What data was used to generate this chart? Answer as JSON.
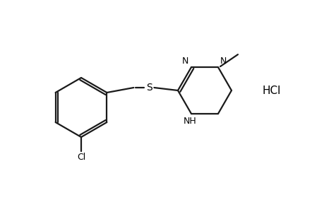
{
  "background_color": "#ffffff",
  "line_color": "#1a1a1a",
  "line_width": 1.6,
  "text_color": "#000000",
  "hcl_label": "HCl",
  "cl_label": "Cl",
  "s_label": "S",
  "nh_label": "NH",
  "n_label": "N",
  "figsize": [
    4.6,
    3.0
  ],
  "dpi": 100
}
